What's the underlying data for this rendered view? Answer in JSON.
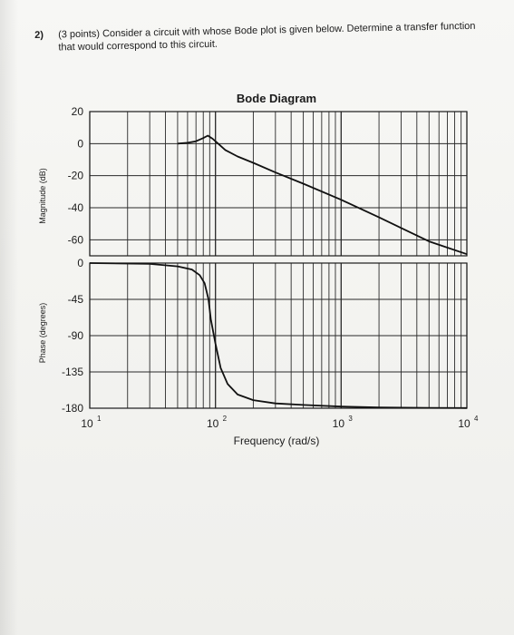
{
  "question": {
    "number": "2)",
    "line1": "(3 points) Consider a circuit with whose Bode plot is given below. Determine a transfer function",
    "line2": "that would correspond to this circuit."
  },
  "chart_data": {
    "type": "line",
    "title": "Bode Diagram",
    "xlabel": "Frequency (rad/s)",
    "x_scale": "log",
    "xlim": [
      10,
      10000
    ],
    "x_ticks": [
      {
        "base": "10",
        "exp": "1",
        "value": 10
      },
      {
        "base": "10",
        "exp": "2",
        "value": 100
      },
      {
        "base": "10",
        "exp": "3",
        "value": 1000
      },
      {
        "base": "10",
        "exp": "4",
        "value": 10000
      }
    ],
    "grid": true,
    "panels": [
      {
        "name": "magnitude",
        "ylabel": "Magnitude (dB)",
        "ylim": [
          -70,
          20
        ],
        "yticks": [
          20,
          0,
          -20,
          -40,
          -60
        ],
        "series": [
          {
            "x": [
              50,
              60,
              70,
              80,
              87,
              95,
              105,
              120,
              150,
              200,
              300,
              500,
              1000,
              2000,
              5000,
              10000
            ],
            "y": [
              0,
              0.5,
              1.5,
              3.5,
              5,
              3,
              0,
              -4,
              -8,
              -12,
              -18,
              -25,
              -35,
              -46,
              -61,
              -69
            ]
          }
        ]
      },
      {
        "name": "phase",
        "ylabel": "Phase (degrees)",
        "ylim": [
          -180,
          0
        ],
        "yticks": [
          0,
          -45,
          -90,
          -135,
          -180
        ],
        "series": [
          {
            "x": [
              10,
              30,
              50,
              65,
              75,
              82,
              88,
              92,
              100,
              110,
              125,
              150,
              200,
              300,
              500,
              1000,
              2000,
              5000,
              10000
            ],
            "y": [
              0,
              -1,
              -4,
              -8,
              -15,
              -25,
              -45,
              -70,
              -100,
              -130,
              -150,
              -163,
              -170,
              -174,
              -176,
              -178,
              -179,
              -179.5,
              -179.8
            ]
          }
        ]
      }
    ]
  }
}
